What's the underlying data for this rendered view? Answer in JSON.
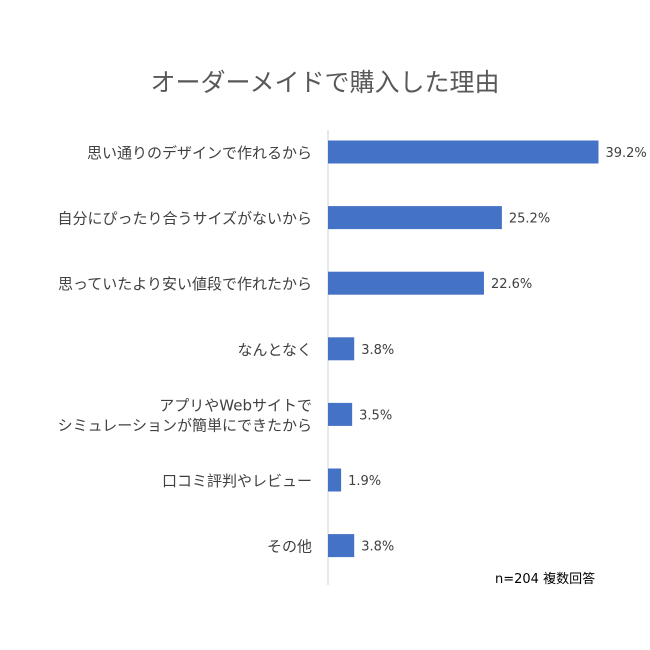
{
  "chart_data": {
    "type": "bar",
    "orientation": "horizontal",
    "title": "オーダーメイドで購入した理由",
    "categories": [
      "思い通りのデザインで作れるから",
      "自分にぴったり合うサイズがないから",
      "思っていたより安い値段で作れたから",
      "なんとなく",
      "アプリやWebサイトで\nシミュレーションが簡単にできたから",
      "口コミ評判やレビュー",
      "その他"
    ],
    "values": [
      39.2,
      25.2,
      22.6,
      3.8,
      3.5,
      1.9,
      3.8
    ],
    "value_labels": [
      "39.2%",
      "25.2%",
      "22.6%",
      "3.8%",
      "3.5%",
      "1.9%",
      "3.8%"
    ],
    "unit": "%",
    "xlim": [
      0,
      50
    ],
    "grid": false,
    "bar_color": "#4472C4"
  },
  "note": "n=204 複数回答"
}
